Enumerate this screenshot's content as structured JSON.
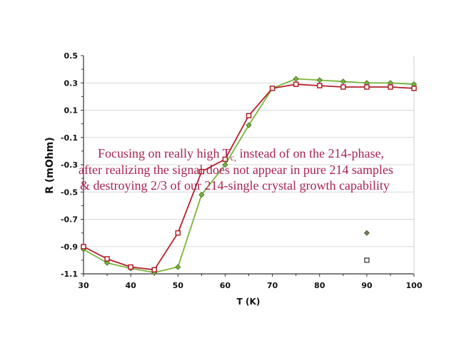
{
  "chart_data": {
    "type": "line",
    "xlabel": "T (K)",
    "ylabel": "R (mOhm)",
    "xlim": [
      30,
      100
    ],
    "ylim": [
      -1.1,
      0.5
    ],
    "x_ticks": [
      "30",
      "40",
      "50",
      "60",
      "70",
      "80",
      "90",
      "100"
    ],
    "y_ticks": [
      "0.5",
      "0.3",
      "0.1",
      "-0.1",
      "-0.3",
      "-0.5",
      "-0.7",
      "-0.9",
      "-1.1"
    ],
    "grid": "horizontal",
    "series": [
      {
        "color": "#7ab53c",
        "marker": "diamond",
        "x": [
          30,
          35,
          40,
          45,
          50,
          55,
          60,
          65,
          70,
          75,
          80,
          85,
          90,
          95,
          100
        ],
        "values": [
          -0.92,
          -1.02,
          -1.06,
          -1.09,
          -1.05,
          -0.52,
          -0.3,
          -0.01,
          0.26,
          0.33,
          0.32,
          0.31,
          0.3,
          0.3,
          0.29
        ]
      },
      {
        "color": "#b3202a",
        "marker": "square",
        "x": [
          30,
          35,
          40,
          45,
          50,
          55,
          60,
          65,
          70,
          75,
          80,
          85,
          90,
          95,
          100
        ],
        "values": [
          -0.9,
          -0.99,
          -1.05,
          -1.07,
          -0.8,
          -0.35,
          -0.26,
          0.06,
          0.26,
          0.29,
          0.28,
          0.27,
          0.27,
          0.27,
          0.26
        ]
      }
    ],
    "legend_markers": [
      {
        "marker": "diamond",
        "color": "#777777"
      },
      {
        "marker": "square",
        "color": "#555555"
      }
    ],
    "annotation": {
      "lines": [
        "Focusing on really high T",
        "c,",
        " instead of on the 214-phase,",
        "after realizing the signal does not appear in pure 214 samples",
        "& destroying 2/3 of our 214-single crystal growth capability"
      ],
      "color": "#a8234f"
    }
  }
}
